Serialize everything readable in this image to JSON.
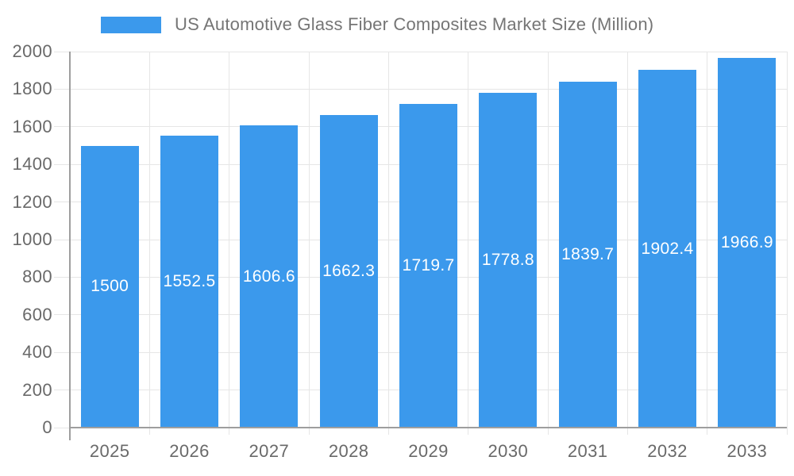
{
  "legend": {
    "series_label": "US Automotive Glass Fiber Composites Market Size (Million)"
  },
  "chart_data": {
    "type": "bar",
    "title": "US Automotive Glass Fiber Composites Market Size (Million)",
    "categories": [
      "2025",
      "2026",
      "2027",
      "2028",
      "2029",
      "2030",
      "2031",
      "2032",
      "2033"
    ],
    "values": [
      1500,
      1552.5,
      1606.6,
      1662.3,
      1719.7,
      1778.8,
      1839.7,
      1902.4,
      1966.9
    ],
    "value_labels": [
      "1500",
      "1552.5",
      "1606.6",
      "1662.3",
      "1719.7",
      "1778.8",
      "1839.7",
      "1902.4",
      "1966.9"
    ],
    "xlabel": "",
    "ylabel": "",
    "ylim": [
      0,
      2000
    ],
    "yticks": [
      "0",
      "200",
      "400",
      "600",
      "800",
      "1000",
      "1200",
      "1400",
      "1600",
      "1800",
      "2000"
    ],
    "ytick_step": 200,
    "grid": true,
    "legend_position": "top-center",
    "bar_label_position": "inside-center",
    "colors": {
      "bar": "#3b99ec",
      "bar_label": "#ffffff",
      "grid_line": "#e6e6e6",
      "axis_line": "#9e9e9e",
      "axis_text": "#696969",
      "legend_text": "#757575",
      "background": "#ffffff"
    }
  }
}
